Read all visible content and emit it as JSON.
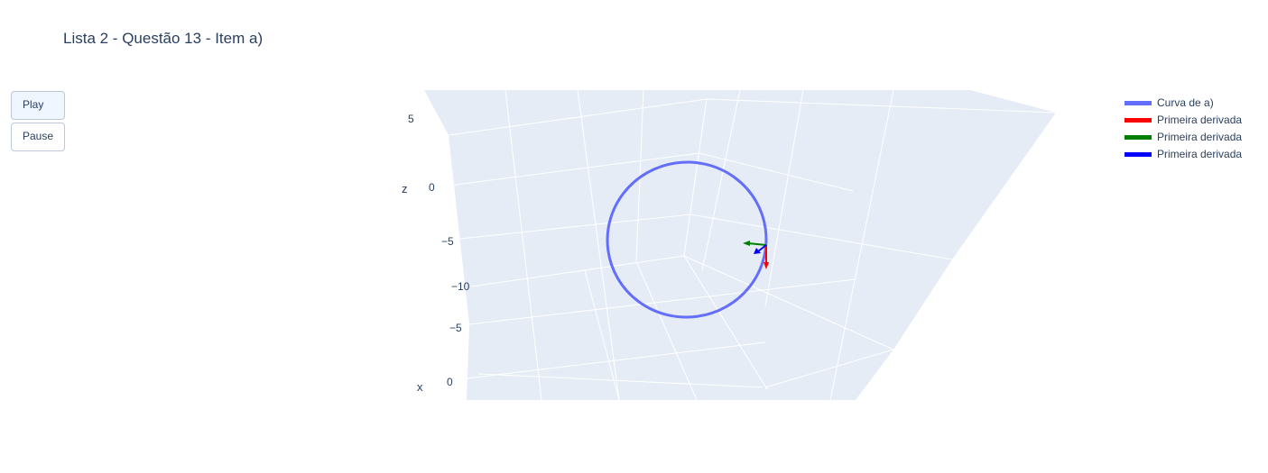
{
  "title": "Lista 2 - Questão 13 - Item a)",
  "controls": {
    "play_label": "Play",
    "pause_label": "Pause"
  },
  "chart_data": {
    "type": "line",
    "dimensions": "3d",
    "title": "Lista 2 - Questão 13 - Item a)",
    "axes": {
      "z": {
        "title": "z",
        "ticks": [
          "5",
          "0",
          "−5",
          "−10"
        ]
      },
      "x": {
        "title": "x",
        "ticks": [
          "−5",
          "0"
        ]
      }
    },
    "background_color": "#e5ecf6",
    "grid": true,
    "legend_position": "top-right",
    "series": [
      {
        "name": "Curva de a)",
        "color": "#636efa",
        "shape": "closed curve (ellipse)"
      },
      {
        "name": "Primeira derivada",
        "color": "#ff0000",
        "shape": "vector arrow"
      },
      {
        "name": "Primeira derivada",
        "color": "#008000",
        "shape": "vector arrow"
      },
      {
        "name": "Primeira derivada",
        "color": "#0000ff",
        "shape": "vector arrow"
      }
    ]
  }
}
